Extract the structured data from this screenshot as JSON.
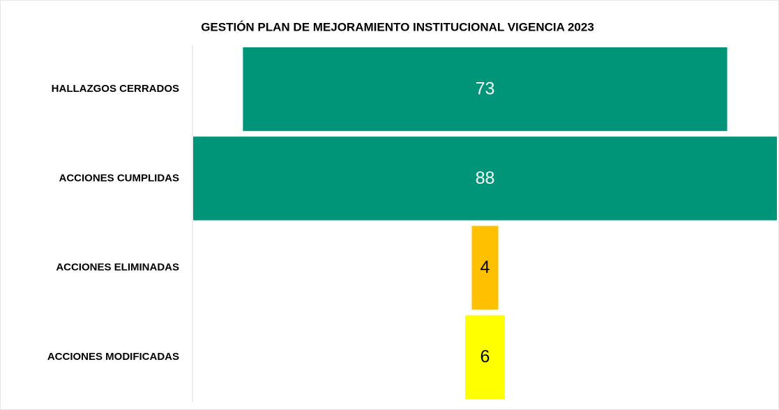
{
  "chart_data": {
    "type": "funnel",
    "title": "GESTIÓN PLAN DE MEJORAMIENTO INSTITUCIONAL VIGENCIA 2023",
    "categories": [
      "HALLAZGOS CERRADOS",
      "ACCIONES CUMPLIDAS",
      "ACCIONES ELIMINADAS",
      "ACCIONES MODIFICADAS"
    ],
    "values": [
      73,
      88,
      4,
      6
    ],
    "colors": [
      "#009479",
      "#009479",
      "#ffc000",
      "#ffff00"
    ]
  }
}
